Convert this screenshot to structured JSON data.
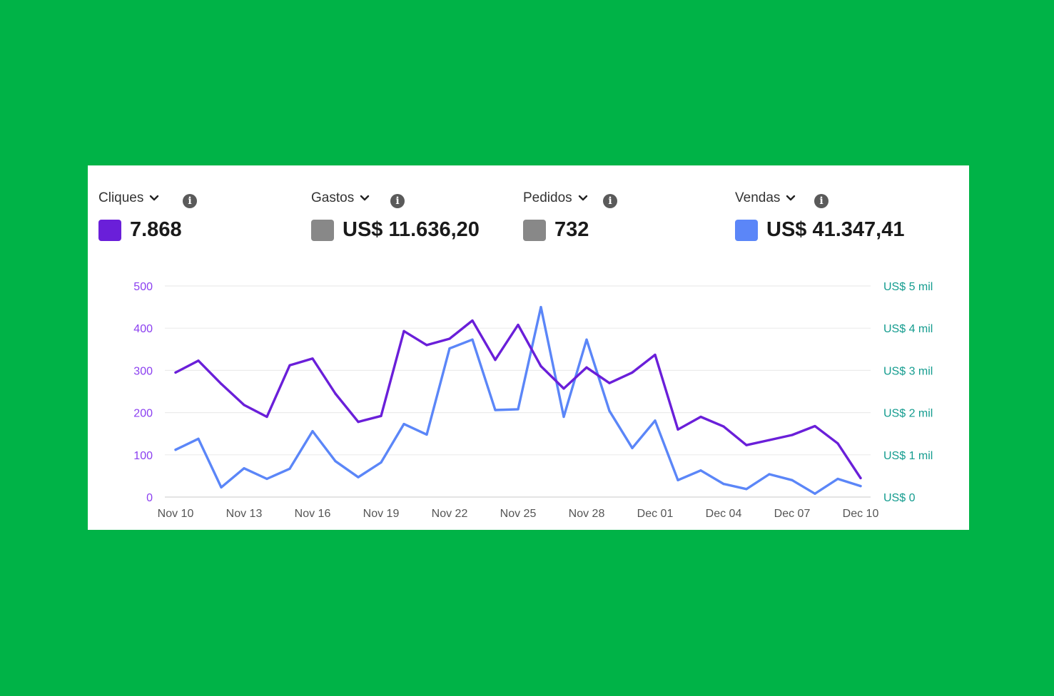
{
  "metrics": [
    {
      "label": "Cliques",
      "value": "7.868",
      "swatch_color": "#6a1fd9"
    },
    {
      "label": "Gastos",
      "value": "US$ 11.636,20",
      "swatch_color": "#888888"
    },
    {
      "label": "Pedidos",
      "value": "732",
      "swatch_color": "#888888"
    },
    {
      "label": "Vendas",
      "value": "US$ 41.347,41",
      "swatch_color": "#5b86f8"
    }
  ],
  "icons": {
    "chevron": "chevron-down-icon",
    "info": "info-icon",
    "info_glyph": "i"
  },
  "chart_data": {
    "type": "line",
    "x": [
      "Nov 10",
      "Nov 11",
      "Nov 12",
      "Nov 13",
      "Nov 14",
      "Nov 15",
      "Nov 16",
      "Nov 17",
      "Nov 18",
      "Nov 19",
      "Nov 20",
      "Nov 21",
      "Nov 22",
      "Nov 23",
      "Nov 24",
      "Nov 25",
      "Nov 26",
      "Nov 27",
      "Nov 28",
      "Nov 29",
      "Nov 30",
      "Dec 01",
      "Dec 02",
      "Dec 03",
      "Dec 04",
      "Dec 05",
      "Dec 06",
      "Dec 07",
      "Dec 08",
      "Dec 09",
      "Dec 10"
    ],
    "x_tick_labels": [
      "Nov 10",
      "Nov 13",
      "Nov 16",
      "Nov 19",
      "Nov 22",
      "Nov 25",
      "Nov 28",
      "Dec 01",
      "Dec 04",
      "Dec 07",
      "Dec 10"
    ],
    "series": [
      {
        "name": "Cliques",
        "axis": "left",
        "color": "#6a1fd9",
        "values": [
          295,
          323,
          268,
          218,
          190,
          312,
          328,
          245,
          178,
          192,
          393,
          360,
          375,
          418,
          325,
          408,
          310,
          257,
          307,
          270,
          295,
          337,
          160,
          190,
          167,
          123,
          135,
          147,
          168,
          127,
          45
        ]
      },
      {
        "name": "Vendas",
        "axis": "right",
        "color": "#5b86f8",
        "values": [
          1120,
          1380,
          230,
          680,
          430,
          670,
          1560,
          850,
          470,
          820,
          1730,
          1480,
          3520,
          3730,
          2060,
          2080,
          4500,
          1900,
          3730,
          2040,
          1160,
          1810,
          400,
          630,
          310,
          190,
          540,
          400,
          80,
          430,
          260
        ]
      }
    ],
    "y_left": {
      "ticks": [
        0,
        100,
        200,
        300,
        400,
        500
      ],
      "tick_labels": [
        "0",
        "100",
        "200",
        "300",
        "400",
        "500"
      ],
      "ylim": [
        0,
        500
      ]
    },
    "y_right": {
      "tick_labels": [
        "US$ 0",
        "US$ 1 mil",
        "US$ 2 mil",
        "US$ 3 mil",
        "US$ 4 mil",
        "US$ 5 mil"
      ],
      "ylim": [
        0,
        5000
      ]
    },
    "grid": true
  }
}
